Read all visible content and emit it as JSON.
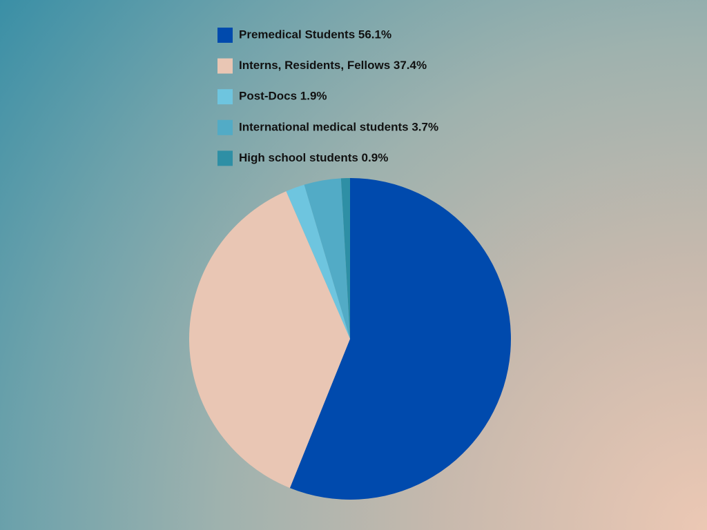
{
  "chart_data": {
    "type": "pie",
    "categories": [
      "Premedical Students 56.1%",
      "Interns, Residents, Fellows 37.4%",
      "Post-Docs 1.9%",
      "International medical students 3.7%",
      "High school students 0.9%"
    ],
    "values": [
      56.1,
      37.4,
      1.9,
      3.7,
      0.9
    ],
    "colors": [
      "#004aad",
      "#e9c6b4",
      "#6ec5df",
      "#52abc6",
      "#2e8fa5"
    ],
    "legend": "top"
  }
}
